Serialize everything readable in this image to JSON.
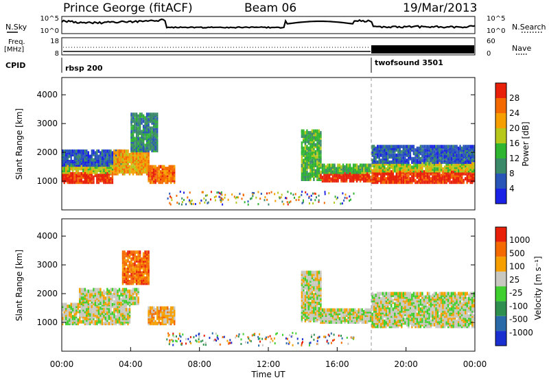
{
  "header": {
    "station": "Prince George (fitACF)",
    "beam": "Beam 06",
    "date": "19/Mar/2013"
  },
  "top_panel": {
    "left_label": "N.Sky",
    "right_label": "N.Search",
    "left_ticks": [
      "10^5",
      "10^0"
    ],
    "right_ticks": [
      "10^5",
      "10^0"
    ]
  },
  "freq_panel": {
    "left_label_line1": "Freq.",
    "left_label_line2": "[MHz]",
    "right_label": "Nave",
    "left_ticks": [
      "18",
      "8"
    ],
    "right_ticks": [
      "60",
      "0"
    ]
  },
  "cpid_panel": {
    "label": "CPID",
    "modes": [
      {
        "name": "rbsp 200",
        "start_hour": 0
      },
      {
        "name": "twofsound 3501",
        "start_hour": 18
      }
    ]
  },
  "colors": {
    "power": [
      "#1a22e6",
      "#2a55b8",
      "#3a8a6a",
      "#2fb52f",
      "#b8c81a",
      "#f5a000",
      "#f56a00",
      "#e8200a"
    ],
    "velocity": [
      "#1a2fd0",
      "#2a6aa8",
      "#2f8f4f",
      "#3fcf2f",
      "#c8c8c0",
      "#f5a000",
      "#f56a00",
      "#e8200a"
    ],
    "velocity_ground": "#c8c6be"
  },
  "chart_data": [
    {
      "type": "heatmap",
      "panel": "power",
      "ylabel": "Slant Range [km]",
      "ylim": [
        0,
        4600
      ],
      "yticks": [
        "1000",
        "2000",
        "3000",
        "4000"
      ],
      "xlim": [
        0,
        24
      ],
      "colorbar": {
        "label": "Power [dB]",
        "ticks": [
          "28",
          "24",
          "20",
          "16",
          "12",
          "8",
          "4"
        ],
        "range": [
          0,
          32
        ]
      },
      "echo_regions": [
        {
          "t0": 0.0,
          "t1": 3.0,
          "r0": 900,
          "r1": 1250,
          "level": 7
        },
        {
          "t0": 0.0,
          "t1": 3.0,
          "r0": 1250,
          "r1": 1500,
          "level": 4
        },
        {
          "t0": 0.0,
          "t1": 3.5,
          "r0": 1500,
          "r1": 2000,
          "level": 1
        },
        {
          "t0": 3.0,
          "t1": 5.0,
          "r0": 1200,
          "r1": 2000,
          "level": 5
        },
        {
          "t0": 4.0,
          "t1": 5.5,
          "r0": 2000,
          "r1": 3300,
          "level": 2
        },
        {
          "t0": 5.0,
          "t1": 6.5,
          "r0": 900,
          "r1": 1500,
          "level": 6
        },
        {
          "t0": 13.9,
          "t1": 15.0,
          "r0": 1000,
          "r1": 2700,
          "level": 3
        },
        {
          "t0": 15.0,
          "t1": 18.0,
          "r0": 950,
          "r1": 1250,
          "level": 7
        },
        {
          "t0": 15.0,
          "t1": 18.0,
          "r0": 1250,
          "r1": 1500,
          "level": 3
        },
        {
          "t0": 18.0,
          "t1": 24.0,
          "r0": 900,
          "r1": 1300,
          "level": 7
        },
        {
          "t0": 18.0,
          "t1": 24.0,
          "r0": 1300,
          "r1": 1600,
          "level": 4
        },
        {
          "t0": 18.0,
          "t1": 24.0,
          "r0": 1600,
          "r1": 2200,
          "level": 1
        }
      ]
    },
    {
      "type": "heatmap",
      "panel": "velocity",
      "ylabel": "Slant Range [km]",
      "ylim": [
        0,
        4600
      ],
      "yticks": [
        "1000",
        "2000",
        "3000",
        "4000"
      ],
      "xlim": [
        0,
        24
      ],
      "xlabel": "Time UT",
      "xticks": [
        "00:00",
        "04:00",
        "08:00",
        "12:00",
        "16:00",
        "20:00",
        "00:00"
      ],
      "colorbar": {
        "label": "Velocity [m s⁻¹]",
        "ticks": [
          "1000",
          "500",
          "100",
          "25",
          "-25",
          "-100",
          "-500",
          "-1000"
        ]
      },
      "echo_regions": [
        {
          "t0": 0.0,
          "t1": 4.0,
          "r0": 900,
          "r1": 1600,
          "level": 4
        },
        {
          "t0": 1.0,
          "t1": 4.5,
          "r0": 1600,
          "r1": 2100,
          "level": 4
        },
        {
          "t0": 3.5,
          "t1": 5.0,
          "r0": 2300,
          "r1": 3400,
          "level": 6
        },
        {
          "t0": 5.0,
          "t1": 6.5,
          "r0": 900,
          "r1": 1500,
          "level": 5
        },
        {
          "t0": 13.9,
          "t1": 15.0,
          "r0": 1000,
          "r1": 2700,
          "level": 4
        },
        {
          "t0": 15.0,
          "t1": 18.0,
          "r0": 950,
          "r1": 1400,
          "level": 4
        },
        {
          "t0": 18.0,
          "t1": 24.0,
          "r0": 800,
          "r1": 2000,
          "level": 4
        }
      ]
    }
  ]
}
